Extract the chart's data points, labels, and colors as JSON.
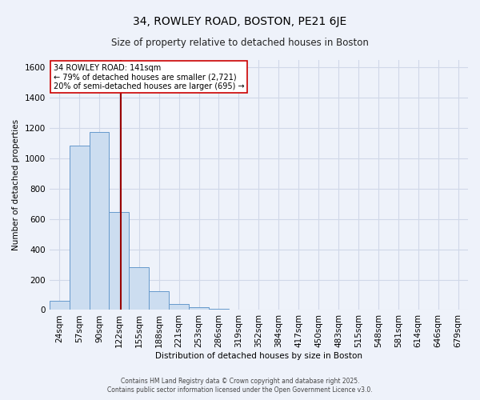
{
  "title": "34, ROWLEY ROAD, BOSTON, PE21 6JE",
  "subtitle": "Size of property relative to detached houses in Boston",
  "xlabel": "Distribution of detached houses by size in Boston",
  "ylabel": "Number of detached properties",
  "bar_labels": [
    "24sqm",
    "57sqm",
    "90sqm",
    "122sqm",
    "155sqm",
    "188sqm",
    "221sqm",
    "253sqm",
    "286sqm",
    "319sqm",
    "352sqm",
    "384sqm",
    "417sqm",
    "450sqm",
    "483sqm",
    "515sqm",
    "548sqm",
    "581sqm",
    "614sqm",
    "646sqm",
    "679sqm"
  ],
  "bar_values": [
    60,
    1085,
    1175,
    645,
    280,
    125,
    40,
    20,
    10,
    0,
    0,
    0,
    0,
    0,
    0,
    0,
    0,
    0,
    0,
    0,
    0
  ],
  "bar_color": "#ccddf0",
  "bar_edge_color": "#6699cc",
  "ylim": [
    0,
    1650
  ],
  "yticks": [
    0,
    200,
    400,
    600,
    800,
    1000,
    1200,
    1400,
    1600
  ],
  "property_line_color": "#990000",
  "annotation_title": "34 ROWLEY ROAD: 141sqm",
  "annotation_line1": "← 79% of detached houses are smaller (2,721)",
  "annotation_line2": "20% of semi-detached houses are larger (695) →",
  "footer1": "Contains HM Land Registry data © Crown copyright and database right 2025.",
  "footer2": "Contains public sector information licensed under the Open Government Licence v3.0.",
  "bg_color": "#eef2fa",
  "grid_color": "#d0d8e8",
  "title_fontsize": 10,
  "subtitle_fontsize": 8.5,
  "axis_label_fontsize": 7.5,
  "tick_fontsize": 7.5,
  "annotation_fontsize": 7.0,
  "footer_fontsize": 5.5
}
